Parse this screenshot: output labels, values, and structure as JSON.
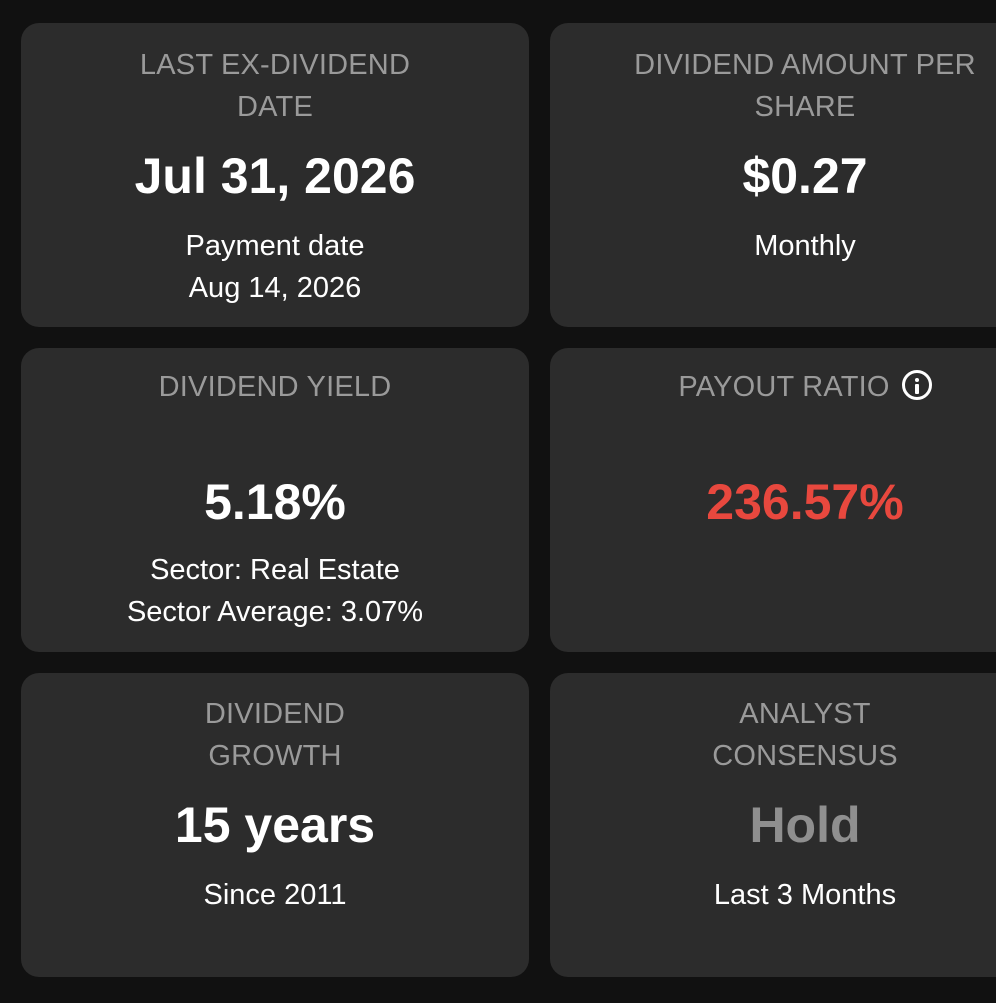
{
  "colors": {
    "background": "#111111",
    "card": "#2c2c2c",
    "label": "#9a9a9a",
    "value": "#ffffff",
    "negative": "#e8483e",
    "neutral": "#8f8f8f"
  },
  "cards": {
    "ex_dividend": {
      "label_line1": "LAST EX-DIVIDEND",
      "label_line2": "DATE",
      "value": "Jul 31, 2026",
      "sub_line1": "Payment date",
      "sub_line2": "Aug 14, 2026"
    },
    "dividend_amount": {
      "label_line1": "DIVIDEND AMOUNT PER",
      "label_line2": "SHARE",
      "value": "$0.27",
      "sub_line1": "Monthly"
    },
    "dividend_yield": {
      "label": "DIVIDEND YIELD",
      "value": "5.18%",
      "sub_line1": "Sector: Real Estate",
      "sub_line2": "Sector Average: 3.07%"
    },
    "payout_ratio": {
      "label": "PAYOUT RATIO",
      "icon": "info-icon",
      "value": "236.57%"
    },
    "dividend_growth": {
      "label_line1": "DIVIDEND",
      "label_line2": "GROWTH",
      "value": "15 years",
      "sub_line1": "Since 2011"
    },
    "analyst_consensus": {
      "label_line1": "ANALYST",
      "label_line2": "CONSENSUS",
      "value": "Hold",
      "sub_line1": "Last 3 Months"
    }
  }
}
